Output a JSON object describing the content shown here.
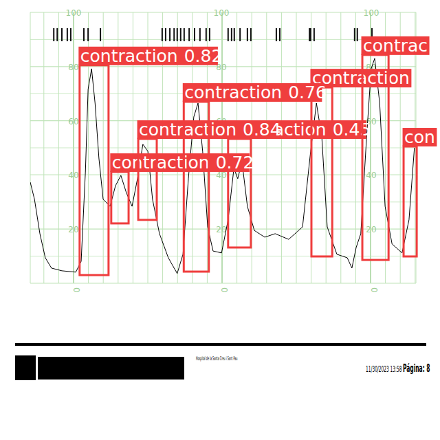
{
  "chart_data": {
    "type": "line",
    "x": [
      0,
      1.1,
      2.5,
      3.9,
      5.5,
      8.2,
      11.8,
      13.2,
      14.3,
      15.0,
      15.9,
      16.8,
      17.8,
      18.9,
      20.7,
      22.1,
      23.5,
      24.9,
      26.4,
      27.8,
      29.2,
      30.5,
      31.7,
      33.5,
      35.8,
      38.1,
      39.6,
      41.0,
      42.4,
      43.5,
      44.7,
      46.0,
      47.4,
      49.6,
      51.3,
      52.8,
      53.8,
      54.9,
      56.3,
      58.1,
      60.8,
      63.5,
      67.0,
      70.6,
      72.7,
      74.2,
      75.6,
      77.0,
      79.5,
      82.2,
      83.4,
      84.5,
      85.7,
      87.2,
      88.4,
      89.3,
      90.6,
      92.0,
      93.8,
      96.4,
      98.2,
      99.6
    ],
    "series": [
      {
        "color": "#000000",
        "values": [
          37.3,
          31,
          18.3,
          9.4,
          5.6,
          4.6,
          4.1,
          8.1,
          41.1,
          71.6,
          79.2,
          66.5,
          46.2,
          31,
          28.4,
          36,
          39.8,
          33.5,
          28.4,
          38.6,
          51.3,
          48.7,
          31,
          18.3,
          9.4,
          3.6,
          10.7,
          38.6,
          61.4,
          66.5,
          48.7,
          20.8,
          11.9,
          11.2,
          23.4,
          42.4,
          38.6,
          44.9,
          28.4,
          19.5,
          17.0,
          18.3,
          16.2,
          20.8,
          48.7,
          66.5,
          53.8,
          20.8,
          10.7,
          9.4,
          5.6,
          13.2,
          18.3,
          53.8,
          79.2,
          83.0,
          66.5,
          28.4,
          14.5,
          11.2,
          23.4,
          50.0
        ]
      }
    ],
    "xlim": [
      0,
      100
    ],
    "ylim": [
      0,
      100
    ],
    "yticks": [
      0,
      20,
      40,
      60,
      80,
      100
    ],
    "grid": true,
    "tick_labels": "y",
    "events": [
      6.1,
      7.0,
      8.2,
      9.6,
      10.5,
      13.9,
      15.0,
      18.2,
      34.2,
      35.1,
      36.2,
      37.3,
      38.1,
      39.0,
      39.9,
      41.2,
      42.6,
      44.0,
      45.6,
      46.5,
      51.3,
      52.2,
      52.9,
      54.4,
      56.3,
      57.2,
      63.8,
      64.7,
      72.4,
      72.7,
      73.6,
      84.1,
      84.8,
      88.6
    ],
    "detections": [
      {
        "label": "contraction",
        "score": 0.45,
        "x": [
          51.3,
          57.2
        ],
        "y": [
          13.2,
          53.3
        ]
      },
      {
        "label": "contraction",
        "x": [
          72.9,
          78.3
        ],
        "y": [
          9.9,
          72.3
        ]
      },
      {
        "label": "con",
        "x": [
          96.8,
          100.2
        ],
        "y": [
          9.9,
          50.5
        ]
      },
      {
        "label": "contrac",
        "x": [
          86.1,
          92.9
        ],
        "y": [
          8.6,
          84.3
        ]
      },
      {
        "label": "contraction",
        "score": 0.82,
        "x": [
          12.8,
          20.3
        ],
        "y": [
          3.0,
          80.5
        ]
      },
      {
        "label": "contraction",
        "score": 0.72,
        "x": [
          21.0,
          25.5
        ],
        "y": [
          22.1,
          41.1
        ]
      },
      {
        "label": "contraction",
        "score": 0.84,
        "x": [
          28.0,
          32.8
        ],
        "y": [
          23.4,
          53.3
        ]
      },
      {
        "label": "contraction",
        "score": 0.76,
        "x": [
          39.8,
          46.3
        ],
        "y": [
          4.3,
          67.0
        ]
      }
    ]
  },
  "footer": {
    "institution": "Hospital de la Santa Creu i Sant Pau",
    "timestamp": "11/30/2023 13:58",
    "page": "Página: 8"
  }
}
